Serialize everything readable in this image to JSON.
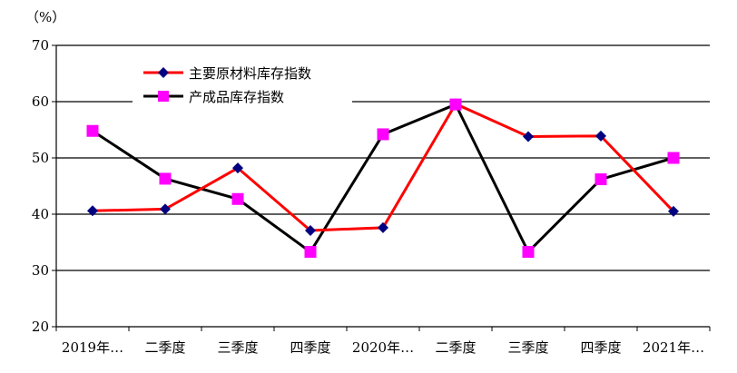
{
  "chart_data": {
    "type": "line",
    "unit_label": "（%）",
    "categories": [
      "2019年…",
      "二季度",
      "三季度",
      "四季度",
      "2020年…",
      "二季度",
      "三季度",
      "四季度",
      "2021年…"
    ],
    "y_ticks": [
      "20",
      "30",
      "40",
      "50",
      "60",
      "70"
    ],
    "ylim": [
      20,
      70
    ],
    "grid": true,
    "legend_position": "top-left",
    "series": [
      {
        "name": "主要原材料库存指数",
        "color": "#ff0000",
        "marker": "diamond",
        "marker_color": "#000080",
        "values": [
          40.6,
          40.9,
          48.2,
          37.1,
          37.6,
          59.6,
          53.8,
          53.9,
          40.5
        ]
      },
      {
        "name": "产成品库存指数",
        "color": "#000000",
        "marker": "square",
        "marker_color": "#ff00ff",
        "values": [
          54.8,
          46.3,
          42.7,
          33.3,
          54.2,
          59.5,
          33.3,
          46.2,
          50.0
        ]
      }
    ]
  }
}
